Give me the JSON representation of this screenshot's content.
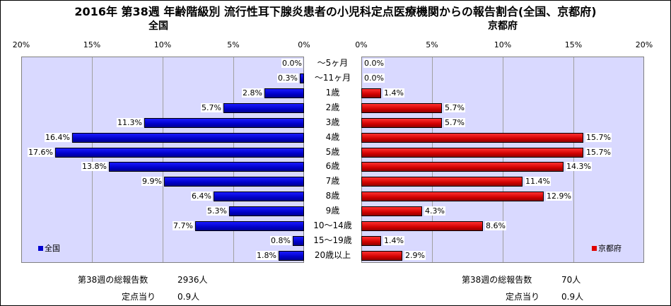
{
  "title": "2016年 第38週 年齢階級別 流行性耳下腺炎患者の小児科定点医療機関からの報告割合(全国、京都府)",
  "chart_data": [
    {
      "type": "bar",
      "orientation": "horizontal",
      "title": "全国",
      "categories": [
        "～5ヶ月",
        "～11ヶ月",
        "1歳",
        "2歳",
        "3歳",
        "4歳",
        "5歳",
        "6歳",
        "7歳",
        "8歳",
        "9歳",
        "10～14歳",
        "15～19歳",
        "20歳以上"
      ],
      "series": [
        {
          "name": "全国",
          "values": [
            0.0,
            0.3,
            2.8,
            5.7,
            11.3,
            16.4,
            17.6,
            13.8,
            9.9,
            6.4,
            5.3,
            7.7,
            0.8,
            1.8
          ],
          "color": "#0000d0"
        }
      ],
      "xlim": [
        0,
        20
      ],
      "x_direction": "reversed",
      "ticks": [
        "20%",
        "15%",
        "10%",
        "5%",
        "0%"
      ],
      "value_labels": [
        "0.0%",
        "0.3%",
        "2.8%",
        "5.7%",
        "11.3%",
        "16.4%",
        "17.6%",
        "13.8%",
        "9.9%",
        "6.4%",
        "5.3%",
        "7.7%",
        "0.8%",
        "1.8%"
      ],
      "legend": "bottom-left",
      "grid": true
    },
    {
      "type": "bar",
      "orientation": "horizontal",
      "title": "京都府",
      "categories": [
        "～5ヶ月",
        "～11ヶ月",
        "1歳",
        "2歳",
        "3歳",
        "4歳",
        "5歳",
        "6歳",
        "7歳",
        "8歳",
        "9歳",
        "10～14歳",
        "15～19歳",
        "20歳以上"
      ],
      "series": [
        {
          "name": "京都府",
          "values": [
            0.0,
            0.0,
            1.4,
            5.7,
            5.7,
            15.7,
            15.7,
            14.3,
            11.4,
            12.9,
            4.3,
            8.6,
            1.4,
            2.9
          ],
          "color": "#e00000"
        }
      ],
      "xlim": [
        0,
        20
      ],
      "ticks": [
        "0%",
        "5%",
        "10%",
        "15%",
        "20%"
      ],
      "value_labels": [
        "0.0%",
        "0.0%",
        "1.4%",
        "5.7%",
        "5.7%",
        "15.7%",
        "15.7%",
        "14.3%",
        "11.4%",
        "12.9%",
        "4.3%",
        "8.6%",
        "1.4%",
        "2.9%"
      ],
      "legend": "bottom-right",
      "grid": true
    }
  ],
  "footer": {
    "left_total_label": "第38週の総報告数",
    "left_total_value": "2936人",
    "left_per_label": "定点当り",
    "left_per_value": "0.9人",
    "right_total_label": "第38週の総報告数",
    "right_total_value": "70人",
    "right_per_label": "定点当り",
    "right_per_value": "0.9人"
  }
}
